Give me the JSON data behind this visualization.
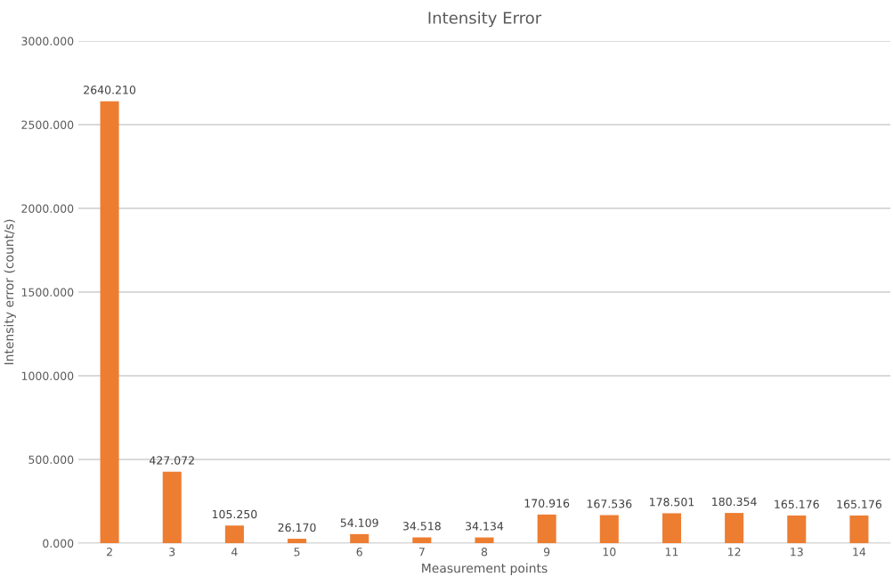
{
  "chart_data": {
    "type": "bar",
    "title": "Intensity Error",
    "xlabel": "Measurement points",
    "ylabel": "Intensity error (count/s)",
    "categories": [
      "2",
      "3",
      "4",
      "5",
      "6",
      "7",
      "8",
      "9",
      "10",
      "11",
      "12",
      "13",
      "14"
    ],
    "values": [
      2640.21,
      427.072,
      105.25,
      26.17,
      54.109,
      34.518,
      34.134,
      170.916,
      167.536,
      178.501,
      180.354,
      165.176,
      165.176
    ],
    "value_labels": [
      "2640.210",
      "427.072",
      "105.250",
      "26.170",
      "54.109",
      "34.518",
      "34.134",
      "170.916",
      "167.536",
      "178.501",
      "180.354",
      "165.176",
      "165.176"
    ],
    "color": "#ed7d31",
    "ylim": [
      0,
      3000
    ],
    "yticks": [
      {
        "value": 0,
        "label": "0.000"
      },
      {
        "value": 500,
        "label": "500.000"
      },
      {
        "value": 1000,
        "label": "1000.000"
      },
      {
        "value": 1500,
        "label": "1500.000"
      },
      {
        "value": 2000,
        "label": "2000.000"
      },
      {
        "value": 2500,
        "label": "2500.000"
      },
      {
        "value": 3000,
        "label": "3000.000"
      }
    ],
    "grid": "y"
  }
}
